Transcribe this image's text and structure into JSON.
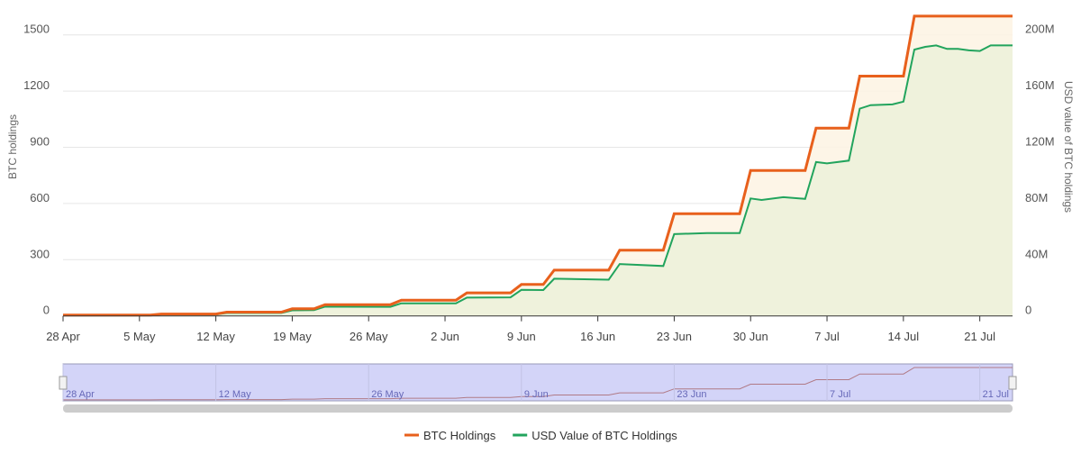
{
  "chart_data": {
    "type": "line",
    "left_axis": {
      "label": "BTC holdings",
      "ticks": [
        "0",
        "300",
        "600",
        "900",
        "1200",
        "1500"
      ],
      "tick_values": [
        0,
        300,
        600,
        900,
        1200,
        1500
      ],
      "ylim": [
        0,
        1650
      ]
    },
    "right_axis": {
      "label": "USD value of BTC holdings",
      "ticks": [
        "0",
        "40M",
        "80M",
        "120M",
        "160M",
        "200M"
      ],
      "tick_values": [
        0,
        40,
        80,
        120,
        160,
        200
      ],
      "ylim": [
        0,
        220
      ],
      "unit": "M USD"
    },
    "x_ticks": [
      "28 Apr",
      "5 May",
      "12 May",
      "19 May",
      "26 May",
      "2 Jun",
      "9 Jun",
      "16 Jun",
      "23 Jun",
      "30 Jun",
      "7 Jul",
      "14 Jul",
      "21 Jul"
    ],
    "x_range": [
      "28 Apr",
      "24 Jul"
    ],
    "grid": true,
    "legend_placement": "bottom",
    "series": [
      {
        "name": "BTC Holdings",
        "axis": "left",
        "color": "#e8601c",
        "step": true
      },
      {
        "name": "USD Value of BTC Holdings",
        "axis": "right",
        "color": "#22a45d"
      }
    ],
    "points": [
      {
        "date": "28 Apr",
        "btc": 5,
        "usd": 0.5
      },
      {
        "date": "6 May",
        "btc": 5,
        "usd": 0.5
      },
      {
        "date": "7 May",
        "btc": 10,
        "usd": 1.0
      },
      {
        "date": "12 May",
        "btc": 10,
        "usd": 1.0
      },
      {
        "date": "13 May",
        "btc": 20,
        "usd": 2.1
      },
      {
        "date": "18 May",
        "btc": 20,
        "usd": 2.1
      },
      {
        "date": "19 May",
        "btc": 38,
        "usd": 4.0
      },
      {
        "date": "21 May",
        "btc": 38,
        "usd": 4.1
      },
      {
        "date": "22 May",
        "btc": 60,
        "usd": 6.6
      },
      {
        "date": "28 May",
        "btc": 60,
        "usd": 6.5
      },
      {
        "date": "29 May",
        "btc": 84,
        "usd": 9.0
      },
      {
        "date": "3 Jun",
        "btc": 84,
        "usd": 8.9
      },
      {
        "date": "4 Jun",
        "btc": 123,
        "usd": 13.0
      },
      {
        "date": "8 Jun",
        "btc": 123,
        "usd": 13.2
      },
      {
        "date": "9 Jun",
        "btc": 168,
        "usd": 18.5
      },
      {
        "date": "11 Jun",
        "btc": 168,
        "usd": 18.4
      },
      {
        "date": "12 Jun",
        "btc": 244,
        "usd": 26.5
      },
      {
        "date": "17 Jun",
        "btc": 244,
        "usd": 25.8
      },
      {
        "date": "18 Jun",
        "btc": 351,
        "usd": 36.9
      },
      {
        "date": "22 Jun",
        "btc": 351,
        "usd": 35.5
      },
      {
        "date": "23 Jun",
        "btc": 545,
        "usd": 58.2
      },
      {
        "date": "26 Jun",
        "btc": 545,
        "usd": 59.0
      },
      {
        "date": "29 Jun",
        "btc": 545,
        "usd": 58.9
      },
      {
        "date": "30 Jun",
        "btc": 776,
        "usd": 83.6
      },
      {
        "date": "1 Jul",
        "btc": 776,
        "usd": 82.5
      },
      {
        "date": "3 Jul",
        "btc": 776,
        "usd": 84.5
      },
      {
        "date": "5 Jul",
        "btc": 776,
        "usd": 83.3
      },
      {
        "date": "6 Jul",
        "btc": 1002,
        "usd": 109.5
      },
      {
        "date": "7 Jul",
        "btc": 1002,
        "usd": 108.5
      },
      {
        "date": "9 Jul",
        "btc": 1002,
        "usd": 110.5
      },
      {
        "date": "10 Jul",
        "btc": 1280,
        "usd": 147.5
      },
      {
        "date": "11 Jul",
        "btc": 1280,
        "usd": 150.0
      },
      {
        "date": "13 Jul",
        "btc": 1280,
        "usd": 150.5
      },
      {
        "date": "14 Jul",
        "btc": 1280,
        "usd": 152.5
      },
      {
        "date": "15 Jul",
        "btc": 1600,
        "usd": 189.5
      },
      {
        "date": "16 Jul",
        "btc": 1600,
        "usd": 191.5
      },
      {
        "date": "17 Jul",
        "btc": 1600,
        "usd": 192.5
      },
      {
        "date": "18 Jul",
        "btc": 1600,
        "usd": 190.0
      },
      {
        "date": "19 Jul",
        "btc": 1600,
        "usd": 190.0
      },
      {
        "date": "20 Jul",
        "btc": 1600,
        "usd": 189.0
      },
      {
        "date": "21 Jul",
        "btc": 1600,
        "usd": 188.5
      },
      {
        "date": "22 Jul",
        "btc": 1600,
        "usd": 192.5
      },
      {
        "date": "24 Jul",
        "btc": 1600,
        "usd": 192.5
      }
    ]
  },
  "navigator": {
    "labels": [
      "28 Apr",
      "12 May",
      "26 May",
      "9 Jun",
      "23 Jun",
      "7 Jul",
      "21 Jul"
    ]
  },
  "legend": {
    "items": [
      {
        "label": "BTC Holdings",
        "color": "#e8601c"
      },
      {
        "label": "USD Value of BTC Holdings",
        "color": "#22a45d"
      }
    ]
  }
}
